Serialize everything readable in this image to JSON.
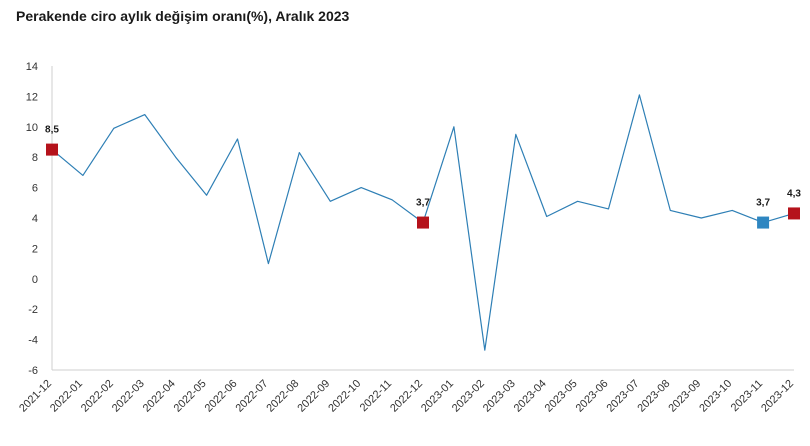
{
  "chart_data": {
    "type": "line",
    "title": "Perakende ciro aylık değişim oranı(%), Aralık 2023",
    "xlabel": "",
    "ylabel": "",
    "ylim": [
      -6,
      14
    ],
    "yticks": [
      14,
      12,
      10,
      8,
      6,
      4,
      2,
      0,
      -2,
      -4,
      -6
    ],
    "grid": false,
    "categories": [
      "2021-12",
      "2022-01",
      "2022-02",
      "2022-03",
      "2022-04",
      "2022-05",
      "2022-06",
      "2022-07",
      "2022-08",
      "2022-09",
      "2022-10",
      "2022-11",
      "2022-12",
      "2023-01",
      "2023-02",
      "2023-03",
      "2023-04",
      "2023-05",
      "2023-06",
      "2023-07",
      "2023-08",
      "2023-09",
      "2023-10",
      "2023-11",
      "2023-12"
    ],
    "series": [
      {
        "values": [
          8.5,
          6.8,
          9.9,
          10.8,
          8.0,
          5.5,
          9.2,
          1.0,
          8.3,
          5.1,
          6.0,
          5.2,
          3.7,
          10.0,
          -4.7,
          9.5,
          4.1,
          5.1,
          4.6,
          12.1,
          4.5,
          4.0,
          4.5,
          3.7,
          4.3
        ],
        "color": "#2e7fb5"
      }
    ],
    "highlights": [
      {
        "index": 0,
        "label": "8,5",
        "color": "#b5121b"
      },
      {
        "index": 12,
        "label": "3,7",
        "color": "#b5121b"
      },
      {
        "index": 23,
        "label": "3,7",
        "color": "#2e86c1"
      },
      {
        "index": 24,
        "label": "4,3",
        "color": "#b5121b"
      }
    ]
  }
}
